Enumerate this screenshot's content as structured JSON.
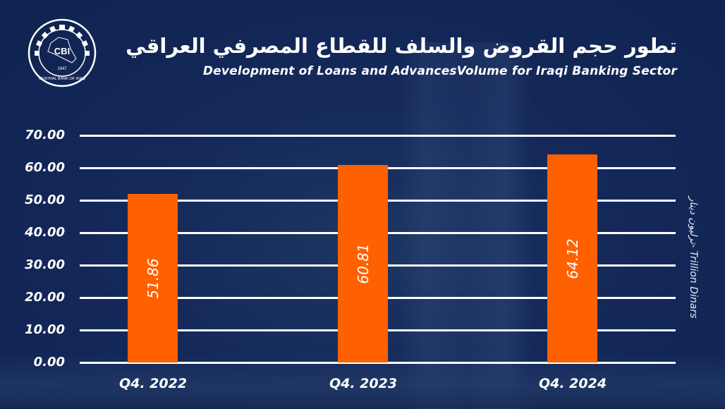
{
  "logo": {
    "initials": "CBI",
    "ring_text": "CENTRAL BANK OF IRAQ",
    "year": "1947"
  },
  "header": {
    "title_ar": "تطور حجم القروض والسلف للقطاع المصرفي العراقي",
    "title_en": "Development of Loans and AdvancesVolume for Iraqi Banking Sector"
  },
  "axis": {
    "yticks": [
      "70.00",
      "60.00",
      "50.00",
      "40.00",
      "30.00",
      "20.00",
      "10.00",
      "0.00"
    ],
    "ylabel": "ترليون دينار- Trillion Dinars"
  },
  "colors": {
    "bar": "#ff6000",
    "background": "#14295a",
    "grid": "#ffffff"
  },
  "chart_data": {
    "type": "bar",
    "title": "Development of Loans and AdvancesVolume for Iraqi Banking Sector",
    "subtitle": "تطور حجم القروض والسلف للقطاع المصرفي العراقي",
    "categories": [
      "Q4. 2022",
      "Q4. 2023",
      "Q4. 2024"
    ],
    "values": [
      51.86,
      60.81,
      64.12
    ],
    "value_labels": [
      "51.86",
      "60.81",
      "64.12"
    ],
    "xlabel": "",
    "ylabel": "ترليون دينار- Trillion Dinars",
    "ylim": [
      0,
      70
    ],
    "yticks": [
      0,
      10,
      20,
      30,
      40,
      50,
      60,
      70
    ],
    "grid": true,
    "legend": null
  }
}
